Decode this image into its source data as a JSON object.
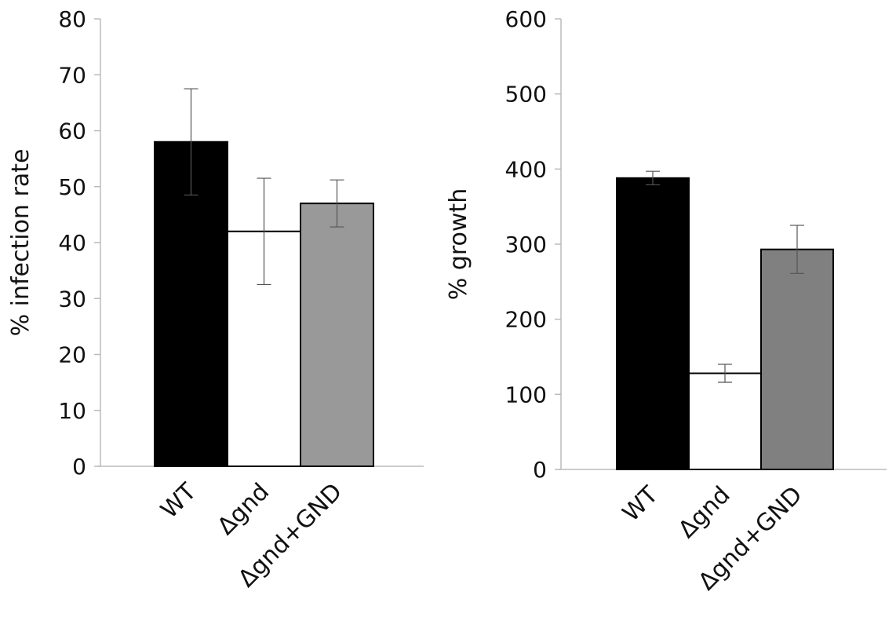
{
  "chart_data": [
    {
      "type": "bar",
      "categories": [
        "WT",
        "Δgnd",
        "Δgnd+GND"
      ],
      "values": [
        58,
        42,
        47
      ],
      "error": [
        9.5,
        9.5,
        4.2
      ],
      "colors": [
        "#000000",
        "#ffffff",
        "#999999"
      ],
      "xlabel": "",
      "ylabel": "% infection rate",
      "ylim": [
        0,
        80
      ],
      "yticks": [
        0,
        10,
        20,
        30,
        40,
        50,
        60,
        70,
        80
      ],
      "grid": false
    },
    {
      "type": "bar",
      "categories": [
        "WT",
        "Δgnd",
        "Δgnd+GND"
      ],
      "values": [
        388,
        128,
        293
      ],
      "error": [
        9,
        12,
        32
      ],
      "colors": [
        "#000000",
        "#ffffff",
        "#808080"
      ],
      "xlabel": "",
      "ylabel": "% growth",
      "ylim": [
        0,
        600
      ],
      "yticks": [
        0,
        100,
        200,
        300,
        400,
        500,
        600
      ],
      "grid": false
    }
  ]
}
